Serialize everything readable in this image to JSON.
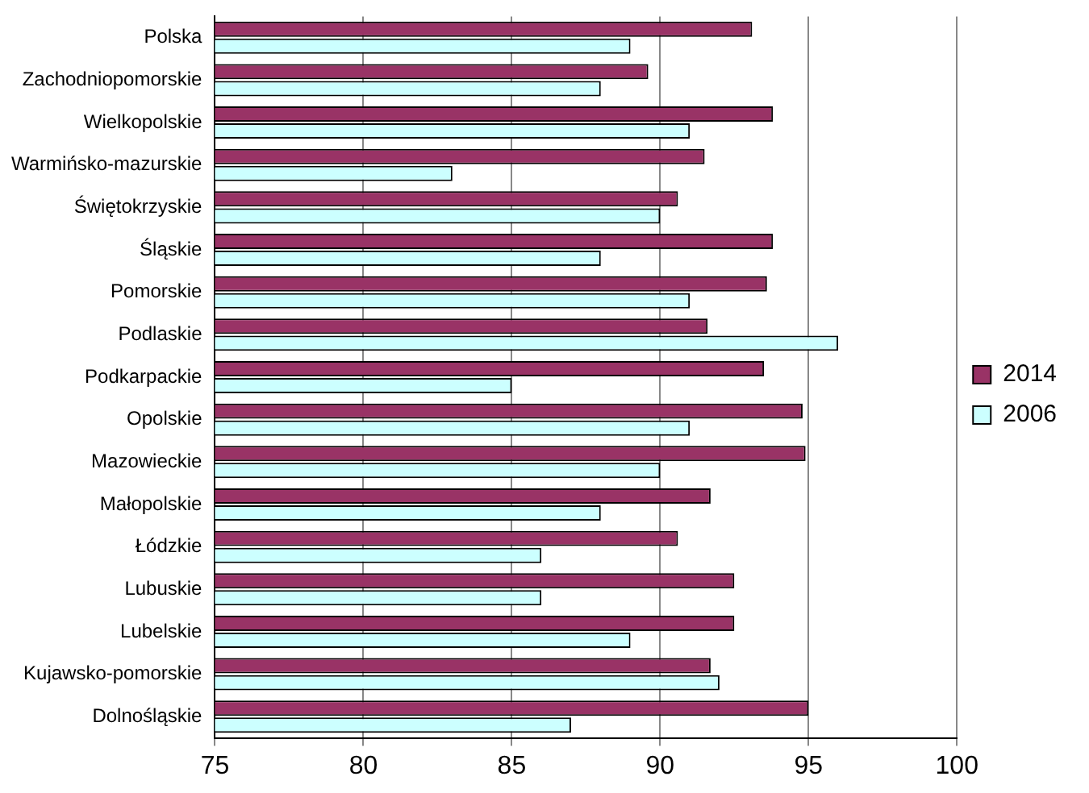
{
  "chart_data": {
    "type": "bar",
    "orientation": "horizontal",
    "categories": [
      "Polska",
      "Zachodniopomorskie",
      "Wielkopolskie",
      "Warmińsko-mazurskie",
      "Świętokrzyskie",
      "Śląskie",
      "Pomorskie",
      "Podlaskie",
      "Podkarpackie",
      "Opolskie",
      "Mazowieckie",
      "Małopolskie",
      "Łódzkie",
      "Lubuskie",
      "Lubelskie",
      "Kujawsko-pomorskie",
      "Dolnośląskie"
    ],
    "series": [
      {
        "name": "2014",
        "color": "#993366",
        "values": [
          93.1,
          89.6,
          93.8,
          91.5,
          90.6,
          93.8,
          93.6,
          91.6,
          93.5,
          94.8,
          94.9,
          91.7,
          90.6,
          92.5,
          92.5,
          91.7,
          95.0
        ]
      },
      {
        "name": "2006",
        "color": "#ccffff",
        "values": [
          89.0,
          88.0,
          91.0,
          83.0,
          90.0,
          88.0,
          91.0,
          96.0,
          85.0,
          91.0,
          90.0,
          88.0,
          86.0,
          86.0,
          89.0,
          92.0,
          87.0
        ]
      }
    ],
    "xlim": [
      75,
      100
    ],
    "xticks": [
      75,
      80,
      85,
      90,
      95,
      100
    ],
    "grid": "x",
    "legend": "right"
  }
}
